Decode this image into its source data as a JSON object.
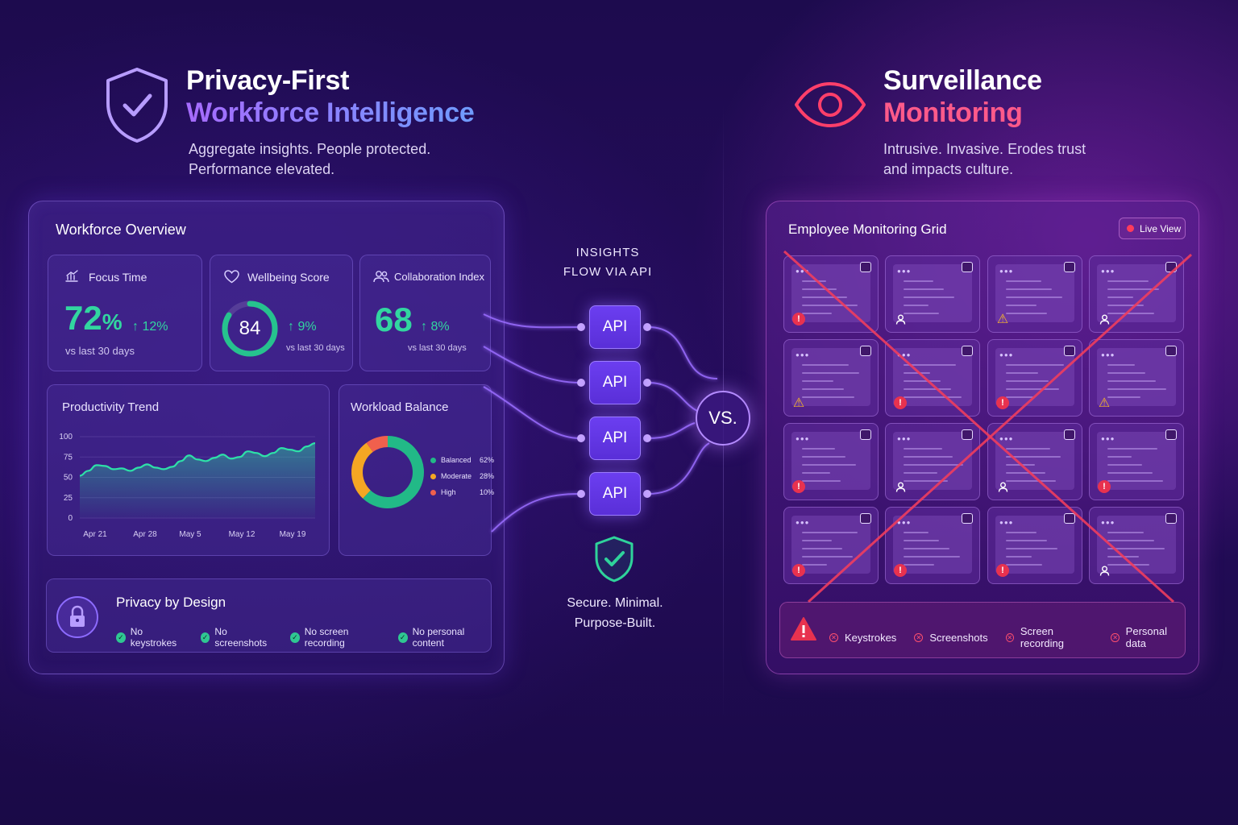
{
  "left_header": {
    "title_line1": "Privacy-First",
    "title_line2": "Workforce Intelligence",
    "subtitle_line1": "Aggregate insights. People protected.",
    "subtitle_line2": "Performance elevated."
  },
  "right_header": {
    "title_line1": "Surveillance",
    "title_line2": "Monitoring",
    "subtitle_line1": "Intrusive. Invasive. Erodes trust",
    "subtitle_line2": "and impacts culture."
  },
  "overview": {
    "title": "Workforce Overview",
    "focus": {
      "label": "Focus Time",
      "value": "72",
      "unit": "%",
      "delta": "12%",
      "note": "vs last 30 days"
    },
    "wellbeing": {
      "label": "Wellbeing Score",
      "value": "84",
      "score": 84,
      "delta": "9%",
      "note": "vs last 30 days"
    },
    "collab": {
      "label": "Collaboration Index",
      "value": "68",
      "delta": "8%",
      "note": "vs last 30 days"
    }
  },
  "chart_data": [
    {
      "type": "area",
      "title": "Productivity Trend",
      "x_tick_labels": [
        "Apr 21",
        "Apr 28",
        "May 5",
        "May 12",
        "May 19"
      ],
      "y_tick_labels": [
        "100",
        "75",
        "50",
        "25",
        "0"
      ],
      "ylim": [
        0,
        100
      ],
      "x": [
        0,
        1,
        2,
        3,
        4,
        5,
        6,
        7,
        8,
        9,
        10,
        11,
        12,
        13,
        14,
        15,
        16,
        17,
        18,
        19,
        20,
        21,
        22,
        23,
        24,
        25,
        26,
        27,
        28
      ],
      "values": [
        52,
        58,
        65,
        64,
        60,
        61,
        58,
        62,
        66,
        62,
        60,
        63,
        70,
        77,
        72,
        70,
        74,
        78,
        73,
        75,
        82,
        80,
        76,
        80,
        86,
        84,
        82,
        88,
        92
      ],
      "grid": true
    },
    {
      "type": "pie",
      "title": "Workload Balance",
      "categories": [
        "Balanced",
        "Moderate",
        "High"
      ],
      "values": [
        62,
        28,
        10
      ],
      "value_labels": [
        "62%",
        "28%",
        "10%"
      ],
      "colors": [
        "#22b987",
        "#f5a623",
        "#f0604d"
      ]
    }
  ],
  "privacy": {
    "title": "Privacy by Design",
    "items": [
      "No keystrokes",
      "No screenshots",
      "No screen recording",
      "No personal content"
    ]
  },
  "middle": {
    "insights_line1": "INSIGHTS",
    "insights_line2": "FLOW VIA API",
    "api_labels": [
      "API",
      "API",
      "API",
      "API"
    ],
    "vs": "VS.",
    "secure_line1": "Secure. Minimal.",
    "secure_line2": "Purpose-Built."
  },
  "monitoring": {
    "title": "Employee Monitoring Grid",
    "live": "Live View",
    "badges": [
      [
        "red",
        "user",
        "warn",
        "user"
      ],
      [
        "warn",
        "red",
        "red",
        "warn"
      ],
      [
        "red",
        "user",
        "user",
        "red"
      ],
      [
        "red",
        "red",
        "red",
        "user"
      ]
    ],
    "alerts": [
      "Keystrokes",
      "Screenshots",
      "Screen recording",
      "Personal data"
    ]
  },
  "colors": {
    "accent_green": "#32d6a0",
    "accent_purple": "#7b4cff",
    "alert_red": "#e8324f",
    "warn_yellow": "#f7b52a"
  },
  "icons": {
    "left_header": "shield-check-icon",
    "right_header": "eye-icon",
    "focus": "bar-chart-icon",
    "wellbeing": "heart-icon",
    "collab": "users-icon",
    "privacy": "lock-icon",
    "secure": "shield-check-icon",
    "live": "record-dot-icon",
    "alert": "warning-icon"
  }
}
